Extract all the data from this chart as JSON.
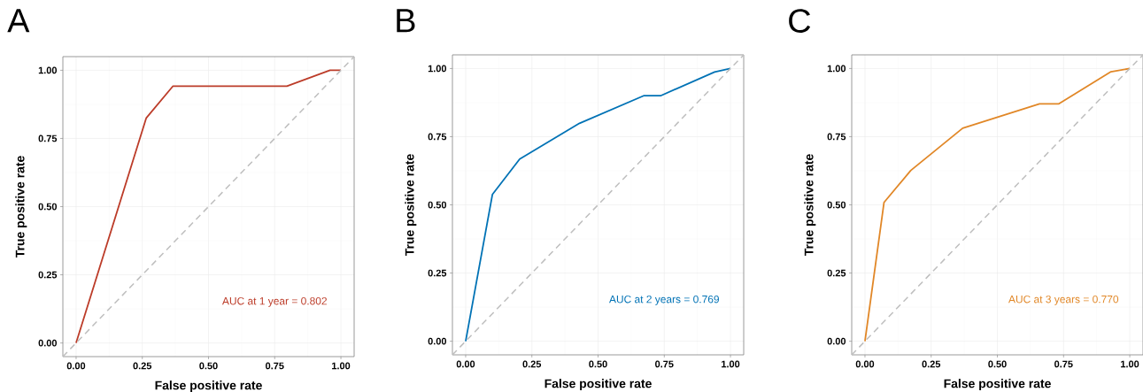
{
  "chart_data": [
    {
      "type": "line",
      "title": "A",
      "xlabel": "False positive rate",
      "ylabel": "True positive rate",
      "xlim": [
        -0.05,
        1.05
      ],
      "ylim": [
        -0.05,
        1.05
      ],
      "xticks": [
        {
          "value": 0,
          "label": "0.00"
        },
        {
          "value": 0.25,
          "label": "0.25"
        },
        {
          "value": 0.5,
          "label": "0.50"
        },
        {
          "value": 0.75,
          "label": "0.75"
        },
        {
          "value": 1,
          "label": "1.00"
        }
      ],
      "yticks": [
        {
          "value": 0,
          "label": "0.00"
        },
        {
          "value": 0.25,
          "label": "0.25"
        },
        {
          "value": 0.5,
          "label": "0.50"
        },
        {
          "value": 0.75,
          "label": "0.75"
        },
        {
          "value": 1,
          "label": "1.00"
        }
      ],
      "grid": true,
      "annotations": [
        "AUC at 1 year = 0.802"
      ],
      "series": [
        {
          "color": "#bc3c29",
          "x": [
            0,
            0.265,
            0.366,
            0.796,
            0.959,
            1
          ],
          "values": [
            0,
            0.825,
            0.942,
            0.942,
            1,
            1
          ]
        },
        {
          "color": "#bebebe",
          "line_style": "dashed",
          "x": [
            -0.05,
            1.05
          ],
          "values": [
            -0.05,
            1.05
          ]
        }
      ]
    },
    {
      "type": "line",
      "title": "B",
      "xlabel": "False positive rate",
      "ylabel": "True positive rate",
      "xlim": [
        -0.05,
        1.05
      ],
      "ylim": [
        -0.05,
        1.05
      ],
      "xticks": [
        {
          "value": 0,
          "label": "0.00"
        },
        {
          "value": 0.25,
          "label": "0.25"
        },
        {
          "value": 0.5,
          "label": "0.50"
        },
        {
          "value": 0.75,
          "label": "0.75"
        },
        {
          "value": 1,
          "label": "1.00"
        }
      ],
      "yticks": [
        {
          "value": 0,
          "label": "0.00"
        },
        {
          "value": 0.25,
          "label": "0.25"
        },
        {
          "value": 0.5,
          "label": "0.50"
        },
        {
          "value": 0.75,
          "label": "0.75"
        },
        {
          "value": 1,
          "label": "1.00"
        }
      ],
      "grid": true,
      "annotations": [
        "AUC at 2 years = 0.769"
      ],
      "series": [
        {
          "color": "#0072b5",
          "x": [
            0,
            0.101,
            0.204,
            0.43,
            0.672,
            0.736,
            0.94,
            1
          ],
          "values": [
            0,
            0.538,
            0.668,
            0.799,
            0.9,
            0.9,
            0.987,
            1
          ]
        },
        {
          "color": "#bebebe",
          "line_style": "dashed",
          "x": [
            -0.05,
            1.05
          ],
          "values": [
            -0.05,
            1.05
          ]
        }
      ]
    },
    {
      "type": "line",
      "title": "C",
      "xlabel": "False positive rate",
      "ylabel": "True positive rate",
      "xlim": [
        -0.05,
        1.05
      ],
      "ylim": [
        -0.05,
        1.05
      ],
      "xticks": [
        {
          "value": 0,
          "label": "0.00"
        },
        {
          "value": 0.25,
          "label": "0.25"
        },
        {
          "value": 0.5,
          "label": "0.50"
        },
        {
          "value": 0.75,
          "label": "0.75"
        },
        {
          "value": 1,
          "label": "1.00"
        }
      ],
      "yticks": [
        {
          "value": 0,
          "label": "0.00"
        },
        {
          "value": 0.25,
          "label": "0.25"
        },
        {
          "value": 0.5,
          "label": "0.50"
        },
        {
          "value": 0.75,
          "label": "0.75"
        },
        {
          "value": 1,
          "label": "1.00"
        }
      ],
      "grid": true,
      "annotations": [
        "AUC at 3 years = 0.770"
      ],
      "series": [
        {
          "color": "#e18727",
          "x": [
            0,
            0.072,
            0.173,
            0.369,
            0.659,
            0.731,
            0.929,
            1
          ],
          "values": [
            0,
            0.509,
            0.626,
            0.781,
            0.87,
            0.87,
            0.988,
            1
          ]
        },
        {
          "color": "#bebebe",
          "line_style": "dashed",
          "x": [
            -0.05,
            1.05
          ],
          "values": [
            -0.05,
            1.05
          ]
        }
      ]
    }
  ]
}
